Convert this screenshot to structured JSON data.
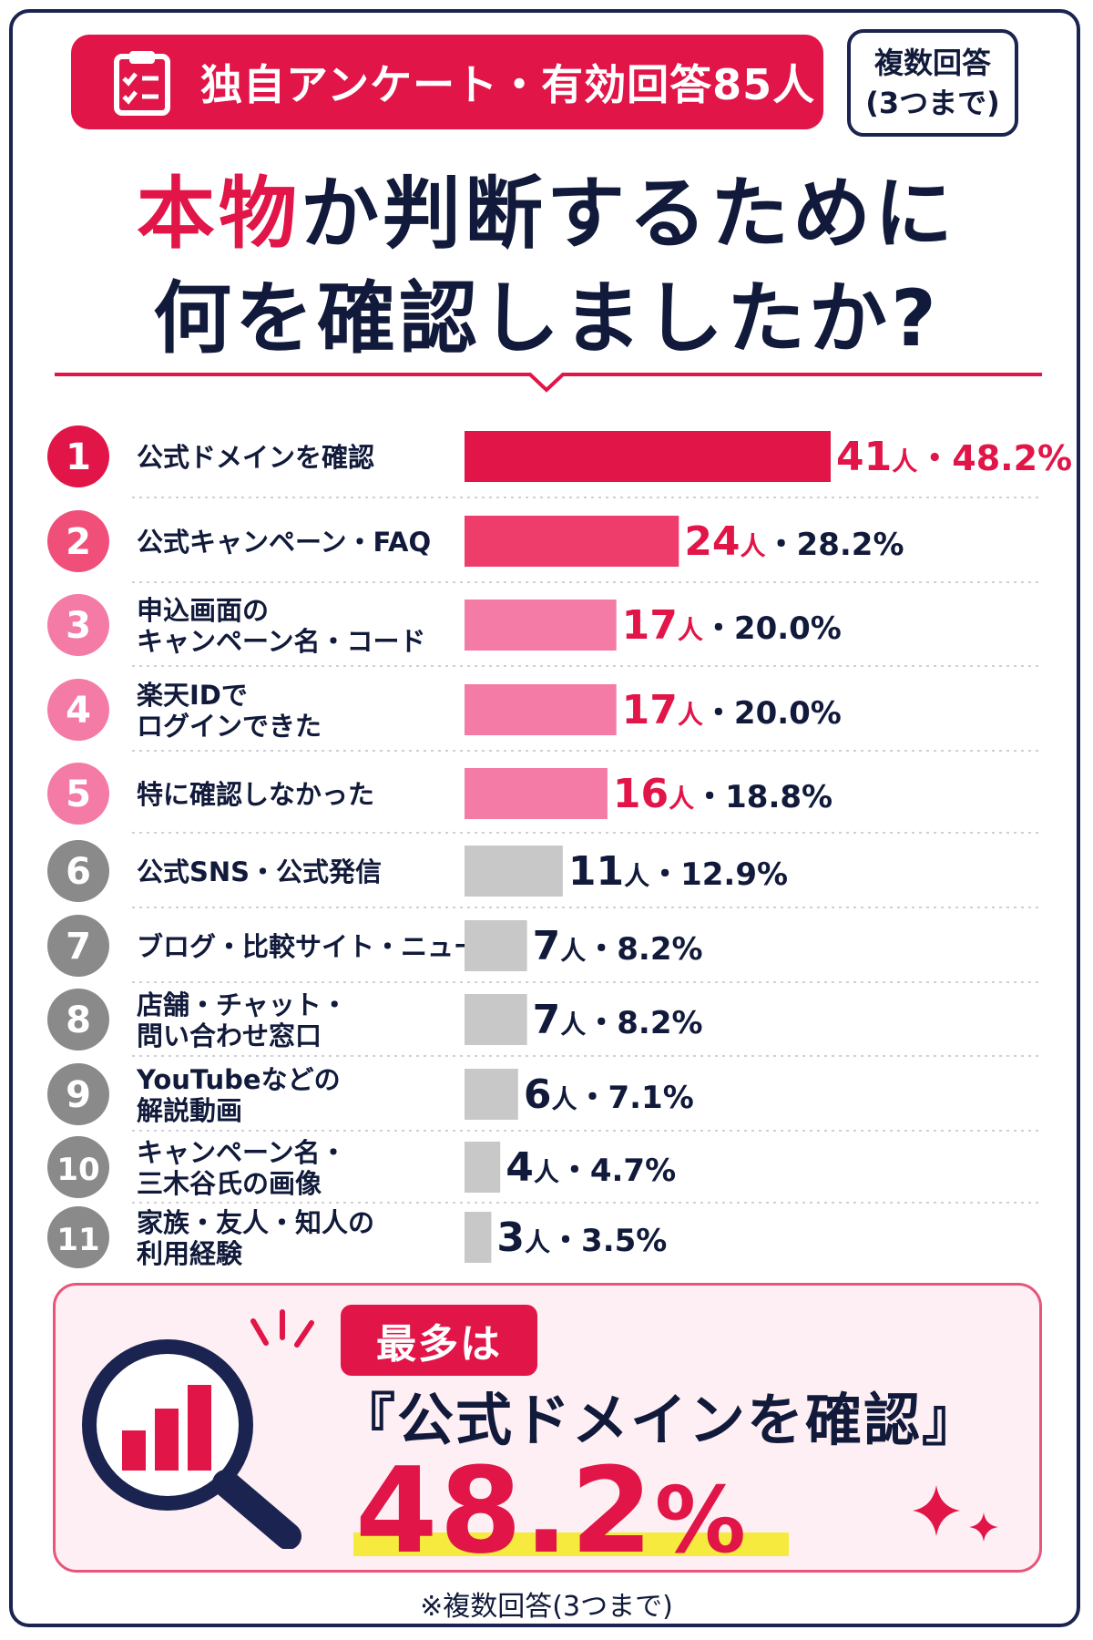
{
  "header": {
    "badge_text": "独自アンケート・有効回答85人",
    "multi_line1": "複数回答",
    "multi_line2": "(3つまで)",
    "title_highlight": "本物",
    "title_line1_rest": "か判断するために",
    "title_line2": "何を確認しましたか?"
  },
  "colors": {
    "accent": "#e11547",
    "navy": "#1b2350",
    "rank2": "#ef3d6b",
    "rank3to5": "#f47ba6",
    "gray": "#c8c8c8",
    "highlight_yellow": "#f6ea3f"
  },
  "chart_data": {
    "type": "bar",
    "orientation": "horizontal",
    "categories": [
      [
        "公式ドメインを確認"
      ],
      [
        "公式キャンペーン・FAQ"
      ],
      [
        "申込画面の",
        "キャンペーン名・コード"
      ],
      [
        "楽天IDで",
        "ログインできた"
      ],
      [
        "特に確認しなかった"
      ],
      [
        "公式SNS・公式発信"
      ],
      [
        "ブログ・比較サイト・ニュース"
      ],
      [
        "店舗・チャット・",
        "問い合わせ窓口"
      ],
      [
        "YouTubeなどの",
        "解説動画"
      ],
      [
        "キャンペーン名・",
        "三木谷氏の画像"
      ],
      [
        "家族・友人・知人の",
        "利用経験"
      ]
    ],
    "ranks": [
      "1",
      "2",
      "3",
      "4",
      "5",
      "6",
      "7",
      "8",
      "9",
      "10",
      "11"
    ],
    "series": [
      {
        "values": [
          41,
          24,
          17,
          17,
          16,
          11,
          7,
          7,
          6,
          4,
          3
        ]
      }
    ],
    "percent_labels": [
      "48.2%",
      "28.2%",
      "20.0%",
      "20.0%",
      "18.8%",
      "12.9%",
      "8.2%",
      "8.2%",
      "7.1%",
      "4.7%",
      "3.5%"
    ],
    "unit": "人",
    "separator": "・",
    "xlim": [
      0,
      41
    ]
  },
  "summary": {
    "tag": "最多は",
    "main": "『公式ドメインを確認』",
    "percent_number": "48.2",
    "percent_sign": "%"
  },
  "footnote": "※複数回答(3つまで)"
}
